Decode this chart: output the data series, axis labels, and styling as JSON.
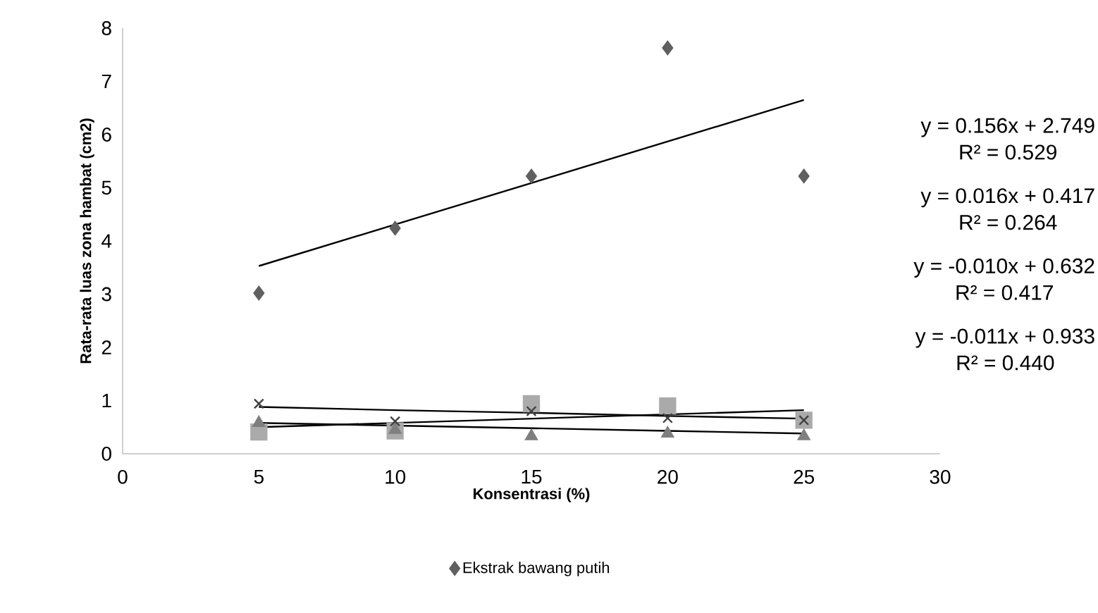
{
  "chart_data": {
    "type": "scatter",
    "xlabel": "Konsentrasi (%)",
    "ylabel": "Rata-rata luas zona hambat (cm2)",
    "x": [
      5,
      10,
      15,
      20,
      25
    ],
    "series": [
      {
        "name": "Ekstrak bawang putih",
        "color": "#606060",
        "marker": "diamond",
        "values": [
          3.02,
          4.24,
          5.22,
          7.63,
          5.22
        ]
      },
      {
        "color": "#aaaaaa",
        "marker": "square",
        "values": [
          0.41,
          0.43,
          0.94,
          0.9,
          0.63
        ]
      },
      {
        "color": "#7f7f7f",
        "marker": "triangle",
        "values": [
          0.58,
          0.45,
          0.33,
          0.38,
          0.33
        ]
      },
      {
        "color": "#404040",
        "marker": "cross",
        "values": [
          0.94,
          0.61,
          0.8,
          0.67,
          0.63
        ]
      },
      {
        "type": "line",
        "color": "#000000",
        "values": [
          3.53,
          4.31,
          5.09,
          5.87,
          6.65
        ]
      },
      {
        "type": "line",
        "color": "#000000",
        "values": [
          0.5,
          0.58,
          0.66,
          0.74,
          0.82
        ]
      },
      {
        "type": "line",
        "color": "#000000",
        "values": [
          0.58,
          0.53,
          0.48,
          0.43,
          0.38
        ]
      },
      {
        "type": "line",
        "color": "#000000",
        "values": [
          0.88,
          0.82,
          0.77,
          0.71,
          0.66
        ]
      }
    ],
    "xlim": [
      0,
      30
    ],
    "ylim": [
      0,
      8
    ],
    "xticks": [
      0,
      5,
      10,
      15,
      20,
      25,
      30
    ],
    "yticks": [
      0,
      1,
      2,
      3,
      4,
      5,
      6,
      7,
      8
    ],
    "grid": false,
    "legend": "bottom",
    "annotations": [
      "y = 0.156x + 2.749",
      "R² = 0.529",
      "y = 0.016x + 0.417",
      "R² = 0.264",
      "y = -0.010x + 0.632",
      "R² = 0.417",
      "y = -0.011x + 0.933",
      "R² = 0.440"
    ]
  }
}
